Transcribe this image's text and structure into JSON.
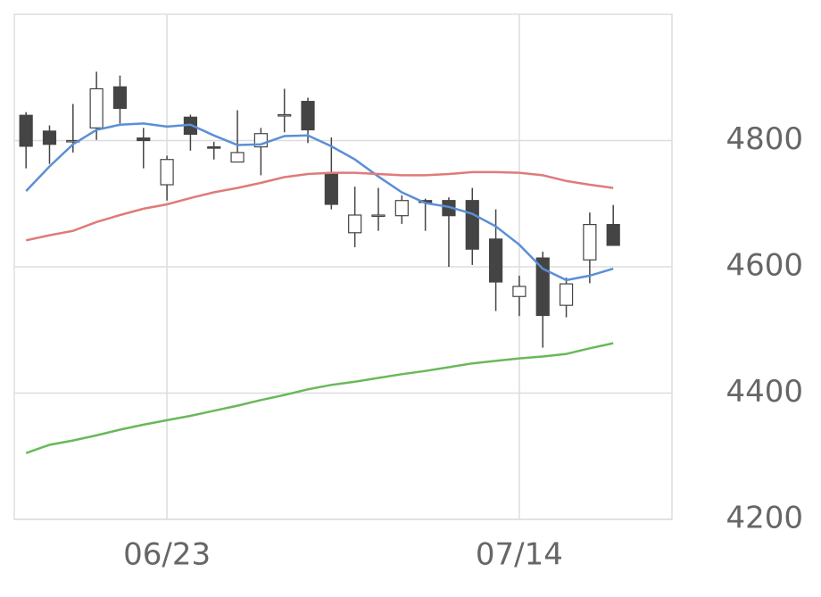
{
  "chart_data": {
    "type": "candlestick",
    "x": [
      null,
      null,
      null,
      null,
      null,
      null,
      "06/23",
      null,
      null,
      null,
      null,
      null,
      null,
      null,
      null,
      null,
      null,
      null,
      null,
      null,
      null,
      "07/14",
      null,
      null,
      null,
      null
    ],
    "open": [
      4840,
      4815,
      4798,
      4820,
      4885,
      4804,
      4730,
      4837,
      4790,
      4766,
      4790,
      4840,
      4862,
      4749,
      4654,
      4681,
      4681,
      4705,
      4705,
      4705,
      4644,
      4553,
      4614,
      4539,
      4611,
      4667
    ],
    "high": [
      4845,
      4824,
      4858,
      4909,
      4903,
      4820,
      4776,
      4841,
      4798,
      4848,
      4820,
      4882,
      4868,
      4805,
      4727,
      4725,
      4713,
      4708,
      4710,
      4725,
      4691,
      4586,
      4624,
      4583,
      4686,
      4698
    ],
    "low": [
      4756,
      4763,
      4781,
      4801,
      4827,
      4756,
      4705,
      4784,
      4770,
      4766,
      4745,
      4813,
      4796,
      4691,
      4631,
      4657,
      4668,
      4657,
      4600,
      4603,
      4530,
      4522,
      4472,
      4520,
      4574,
      4634
    ],
    "close": [
      4791,
      4794,
      4800,
      4882,
      4851,
      4800,
      4770,
      4810,
      4788,
      4781,
      4811,
      4841,
      4817,
      4699,
      4682,
      4682,
      4705,
      4702,
      4681,
      4628,
      4576,
      4569,
      4523,
      4573,
      4667,
      4634
    ],
    "up_color": "#ffffff",
    "down_color": "#444444",
    "series": [
      {
        "color": "#5b8fd6",
        "values": [
          4720,
          4759,
          4794,
          4817,
          4825,
          4827,
          4822,
          4825,
          4808,
          4793,
          4794,
          4807,
          4808,
          4791,
          4770,
          4743,
          4718,
          4701,
          4695,
          4684,
          4664,
          4635,
          4597,
          4579,
          4586,
          4597
        ]
      },
      {
        "color": "#e07a7a",
        "values": [
          4642,
          4650,
          4657,
          4671,
          4682,
          4692,
          4699,
          4709,
          4718,
          4725,
          4733,
          4742,
          4747,
          4749,
          4749,
          4747,
          4745,
          4745,
          4747,
          4750,
          4750,
          4749,
          4745,
          4736,
          4730,
          4725
        ]
      },
      {
        "color": "#6ab85a",
        "values": [
          4305,
          4318,
          4325,
          4333,
          4342,
          4350,
          4357,
          4364,
          4372,
          4380,
          4389,
          4397,
          4406,
          4413,
          4418,
          4424,
          4430,
          4435,
          4441,
          4447,
          4451,
          4455,
          4458,
          4462,
          4471,
          4479
        ]
      }
    ],
    "ylim": [
      4200,
      5000
    ],
    "yticks": [
      4200,
      4400,
      4600,
      4800
    ],
    "grid": true
  }
}
